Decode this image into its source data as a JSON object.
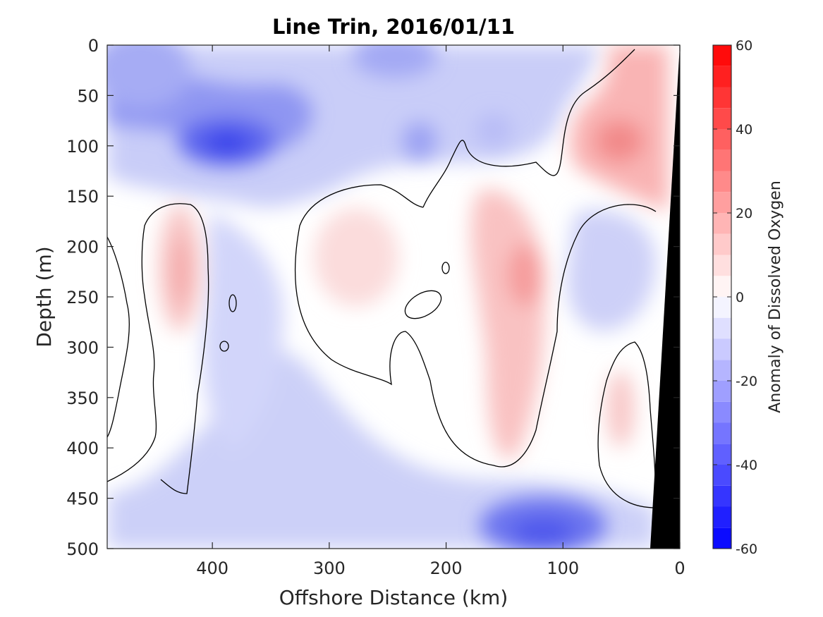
{
  "chart_data": {
    "type": "heatmap",
    "title": "Line Trin, 2016/01/11",
    "xlabel": "Offshore Distance (km)",
    "ylabel": "Depth (m)",
    "xlim": [
      490,
      0
    ],
    "ylim": [
      0,
      500
    ],
    "x_reversed": true,
    "y_reversed": true,
    "xticks": [
      400,
      300,
      200,
      100,
      0
    ],
    "yticks": [
      0,
      50,
      100,
      150,
      200,
      250,
      300,
      350,
      400,
      450,
      500
    ],
    "colorbar": {
      "label": "Anomaly of Dissolved Oxygen",
      "lim": [
        -60,
        60
      ],
      "ticks": [
        60,
        40,
        20,
        0,
        -20,
        -40,
        -60
      ],
      "levels": [
        -60,
        -55,
        -50,
        -45,
        -40,
        -35,
        -30,
        -25,
        -20,
        -15,
        -10,
        -5,
        0,
        5,
        10,
        15,
        20,
        25,
        30,
        35,
        40,
        45,
        50,
        55,
        60
      ],
      "colormap": "blue-white-red",
      "low_color": "#0000ff",
      "high_color": "#ff0000"
    },
    "features": [
      {
        "kind": "min",
        "x": 385,
        "y": 100,
        "value": -35
      },
      {
        "kind": "min",
        "x": 470,
        "y": 80,
        "value": -28
      },
      {
        "kind": "min",
        "x": 110,
        "y": 480,
        "value": -30
      },
      {
        "kind": "min",
        "x": 225,
        "y": 95,
        "value": -22
      },
      {
        "kind": "min",
        "x": 160,
        "y": 85,
        "value": -17
      },
      {
        "kind": "max",
        "x": 52,
        "y": 95,
        "value": 17
      },
      {
        "kind": "max",
        "x": 130,
        "y": 230,
        "value": 16
      },
      {
        "kind": "max",
        "x": 430,
        "y": 230,
        "value": 12
      },
      {
        "kind": "max",
        "x": 280,
        "y": 230,
        "value": 9
      },
      {
        "kind": "max",
        "x": 50,
        "y": 350,
        "value": 9
      }
    ],
    "bathymetry_fill": "#000000"
  }
}
